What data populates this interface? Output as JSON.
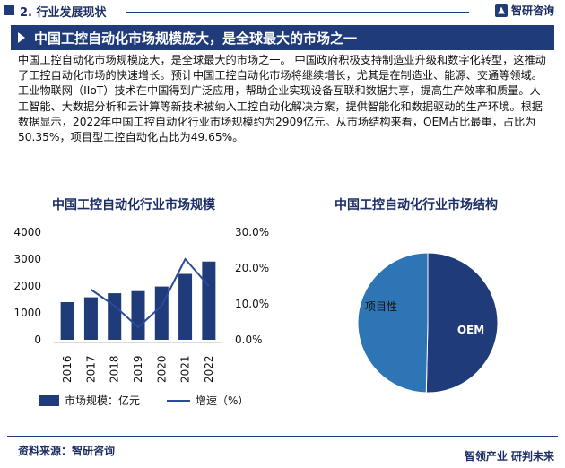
{
  "header": {
    "section_title": "2. 行业发展现状",
    "brand": "智研咨询"
  },
  "headline": "中国工控自动化市场规模庞大，是全球最大的市场之一",
  "paragraph": "中国工控自动化市场规模庞大，是全球最大的市场之一。 中国政府积极支持制造业升级和数字化转型，这推动了工控自动化市场的快速增长。预计中国工控自动化市场将继续增长，尤其是在制造业、能源、交通等领域。工业物联网（IIoT）技术在中国得到广泛应用，帮助企业实现设备互联和数据共享，提高生产效率和质量。人工智能、大数据分析和云计算等新技术被纳入工控自动化解决方案，提供智能化和数据驱动的生产环境。根据数据显示，2022年中国工控自动化行业市场规模约为2909亿元。从市场结构来看，OEM占比最重，占比为50.35%，项目型工控自动化占比为49.65%。",
  "footer": {
    "source": "资料来源：智研咨询",
    "brand": "智领产业 研判未来"
  },
  "colors": {
    "primary": "#1f3b7a",
    "line": "#2a4a9a"
  },
  "chart_data": [
    {
      "type": "bar",
      "title": "中国工控自动化行业市场规模",
      "categories": [
        "2016",
        "2017",
        "2018",
        "2019",
        "2020",
        "2021",
        "2022"
      ],
      "series": [
        {
          "name": "市场规模：亿元",
          "type": "bar",
          "axis": "left",
          "values": [
            1400,
            1580,
            1730,
            1810,
            1980,
            2450,
            2909
          ]
        },
        {
          "name": "增速（%）",
          "type": "line",
          "axis": "right",
          "values": [
            null,
            14.0,
            9.5,
            3.5,
            9.5,
            22.5,
            15.0
          ]
        }
      ],
      "y_left": {
        "min": 0,
        "max": 4000,
        "ticks": [
          "0",
          "1000",
          "2000",
          "3000",
          "4000"
        ]
      },
      "y_right": {
        "min": 0,
        "max": 30,
        "ticks": [
          "0.0%",
          "10.0%",
          "20.0%",
          "30.0%"
        ]
      },
      "legend": [
        "市场规模：亿元",
        "增速（%）"
      ]
    },
    {
      "type": "pie",
      "title": "中国工控自动化行业市场结构",
      "slices": [
        {
          "label": "OEM",
          "value": 50.35,
          "color": "#1f3b7a"
        },
        {
          "label": "项目性",
          "value": 49.65,
          "color": "#2e75b6"
        }
      ]
    }
  ]
}
